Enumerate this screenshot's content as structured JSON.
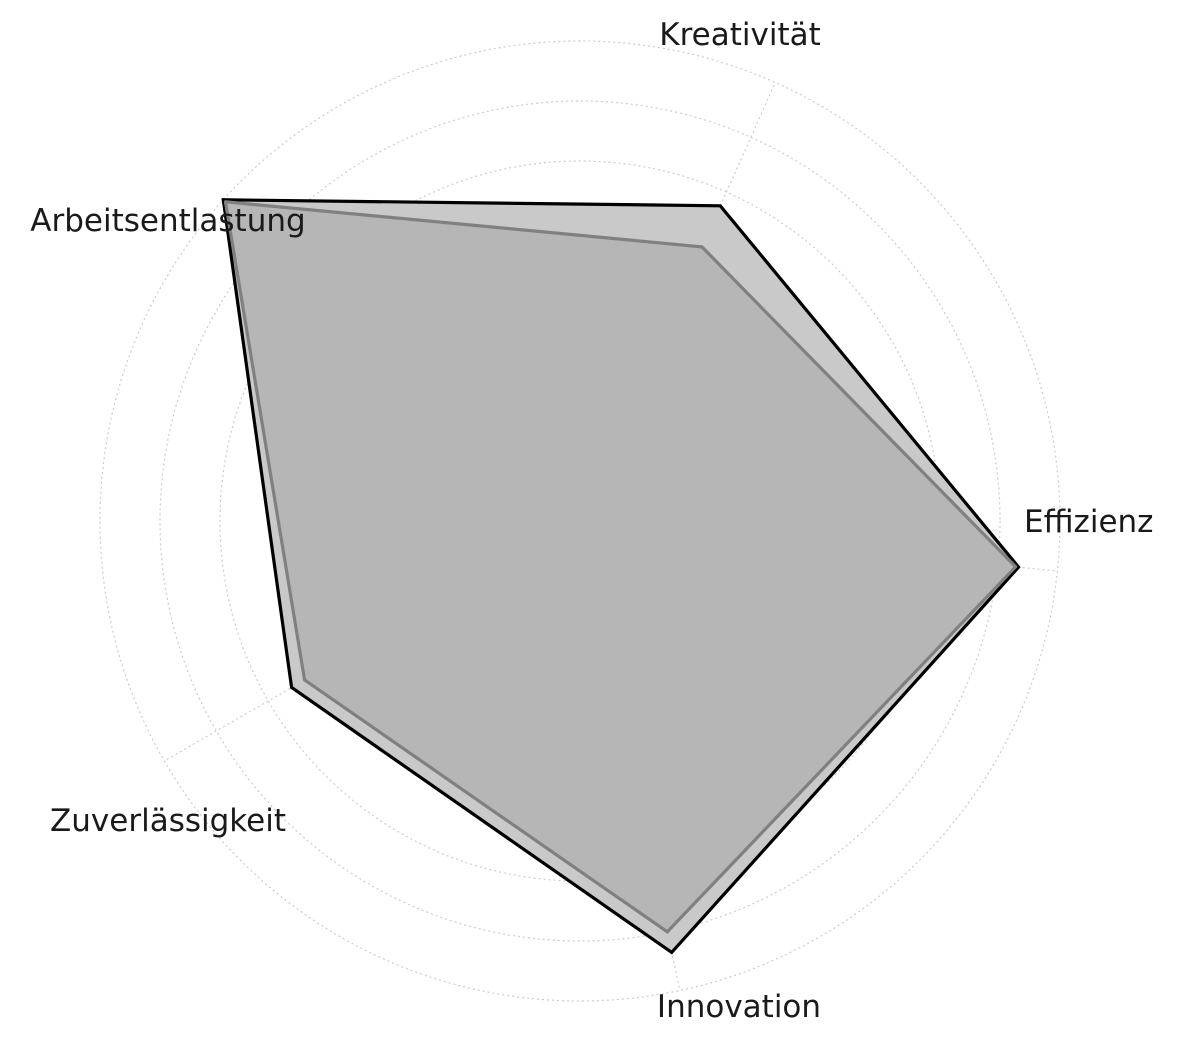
{
  "chart_data": {
    "type": "radar",
    "categories": [
      "Effizienz",
      "Kreativität",
      "Arbeitsentlastung",
      "Zuverlässigkeit",
      "Innovation"
    ],
    "series": [
      {
        "values": [
          7.35,
          5.75,
          8.0,
          5.55,
          7.35
        ],
        "stroke": "#000000",
        "fill": "#c9c9c9"
      },
      {
        "values": [
          7.3,
          5.0,
          7.95,
          5.3,
          7.0
        ],
        "stroke": "#808080",
        "fill": "#b3b3b3"
      }
    ],
    "rlim": [
      0,
      8
    ],
    "ring_step": 1,
    "grid": true,
    "grid_color": "#cccccc"
  }
}
